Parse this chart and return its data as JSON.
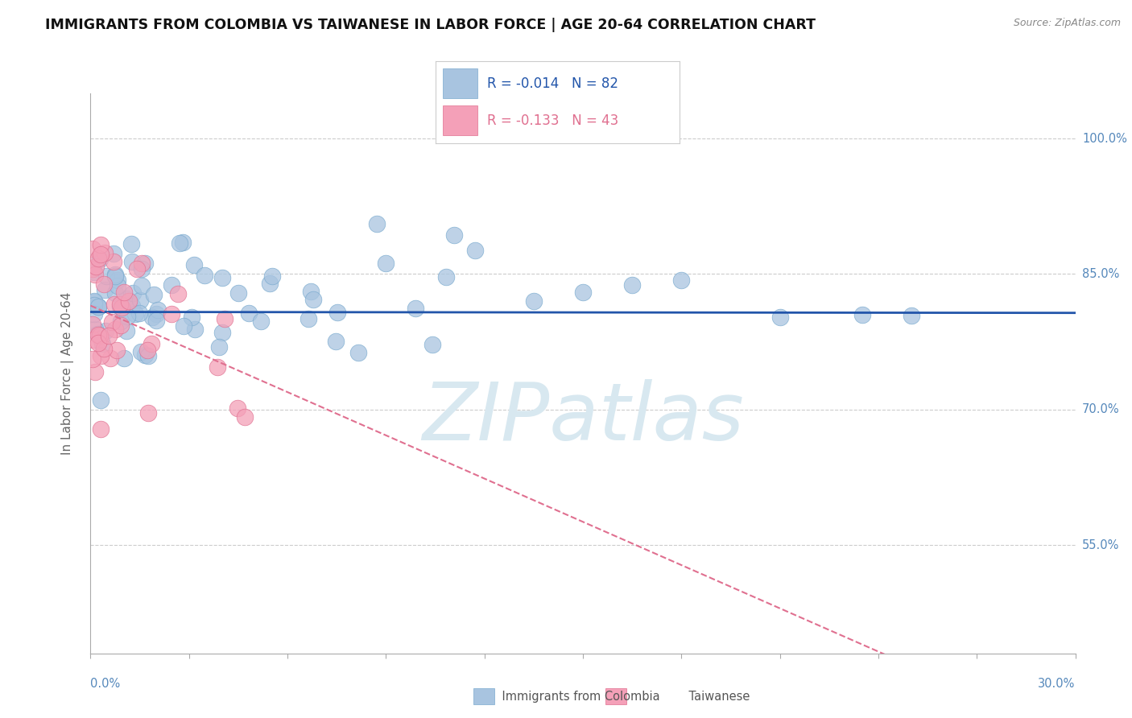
{
  "title": "IMMIGRANTS FROM COLOMBIA VS TAIWANESE IN LABOR FORCE | AGE 20-64 CORRELATION CHART",
  "source_text": "Source: ZipAtlas.com",
  "ylabel": "In Labor Force | Age 20-64",
  "xlim": [
    0.0,
    0.3
  ],
  "ylim": [
    0.43,
    1.05
  ],
  "xtick_positions": [
    0.0,
    0.03,
    0.06,
    0.09,
    0.12,
    0.15,
    0.18,
    0.21,
    0.24,
    0.27,
    0.3
  ],
  "ytick_positions": [
    0.55,
    0.7,
    0.85,
    1.0
  ],
  "ytick_labels": [
    "55.0%",
    "70.0%",
    "85.0%",
    "100.0%"
  ],
  "colombia_R": -0.014,
  "colombia_N": 82,
  "taiwanese_R": -0.133,
  "taiwanese_N": 43,
  "colombia_color": "#a8c4e0",
  "colombia_edge_color": "#7aaace",
  "taiwan_color": "#f4a0b8",
  "taiwan_edge_color": "#e07090",
  "colombia_line_color": "#2255aa",
  "taiwan_line_color": "#e07090",
  "watermark_text": "ZIPatlas",
  "watermark_color": "#d8e8f0",
  "bg_color": "#ffffff",
  "grid_color": "#cccccc",
  "title_color": "#111111",
  "source_color": "#888888",
  "axis_color": "#aaaaaa",
  "tick_label_color": "#5588bb",
  "legend_text_color": "#2255aa",
  "legend_taiwan_text_color": "#e07090",
  "bottom_legend_text_color": "#555555"
}
